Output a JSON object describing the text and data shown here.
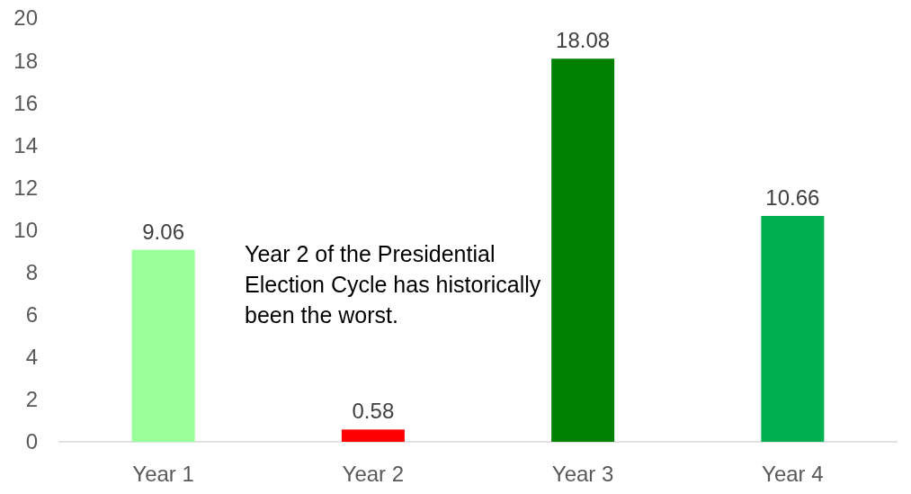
{
  "chart_data": {
    "type": "bar",
    "categories": [
      "Year 1",
      "Year 2",
      "Year 3",
      "Year 4"
    ],
    "values": [
      9.06,
      0.58,
      18.08,
      10.66
    ],
    "colors": [
      "#99ff99",
      "#ff0000",
      "#008000",
      "#00b050"
    ],
    "ylim": [
      0,
      20
    ],
    "yticks": [
      0,
      2,
      4,
      6,
      8,
      10,
      12,
      14,
      16,
      18,
      20
    ],
    "grid": false,
    "data_labels": true,
    "annotations": [
      "Year 2 of the Presidential Election Cycle has historically been the worst."
    ]
  }
}
